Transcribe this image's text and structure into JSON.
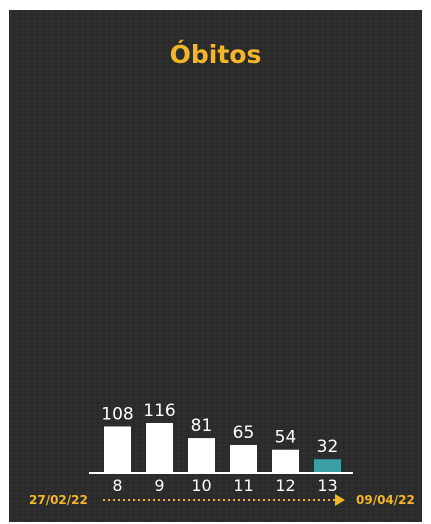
{
  "title": "Óbitos",
  "colors": {
    "accent": "#f5b529",
    "bar": "#ffffff",
    "highlight": "#3aa0a5",
    "background": "#2b2b2b"
  },
  "chart_data": {
    "type": "bar",
    "categories": [
      "8",
      "9",
      "10",
      "11",
      "12",
      "13"
    ],
    "values": [
      108,
      116,
      81,
      65,
      54,
      32
    ],
    "highlight_index": 5,
    "ylim": [
      0,
      116
    ],
    "start_date": "27/02/22",
    "end_date": "09/04/22"
  }
}
